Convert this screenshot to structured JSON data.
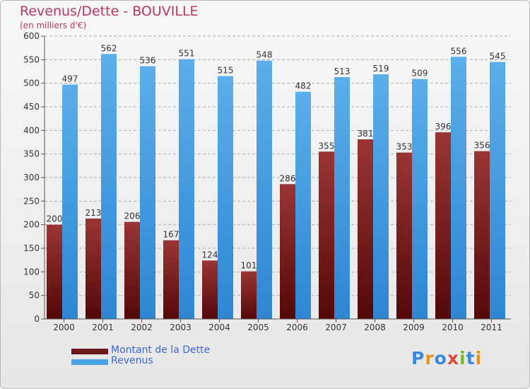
{
  "title": "Revenus/Dette - BOUVILLE",
  "subtitle": "(en milliers d'€)",
  "colors": {
    "title": "#b5395e",
    "dette": "#7d2a2a",
    "revenus": "#4aa3e6",
    "legend_text": "#3d67d8"
  },
  "legend": {
    "dette_label": "Montant de la Dette",
    "revenus_label": "Revenus"
  },
  "logo_text": "Proxiti",
  "chart_data": {
    "type": "bar",
    "title": "Revenus/Dette - BOUVILLE",
    "subtitle": "(en milliers d'€)",
    "categories": [
      "2000",
      "2001",
      "2002",
      "2003",
      "2004",
      "2005",
      "2006",
      "2007",
      "2008",
      "2009",
      "2010",
      "2011"
    ],
    "series": [
      {
        "name": "Montant de la Dette",
        "color": "#7d2a2a",
        "values": [
          200,
          213,
          206,
          167,
          124,
          101,
          286,
          355,
          381,
          353,
          396,
          356
        ]
      },
      {
        "name": "Revenus",
        "color": "#4aa3e6",
        "values": [
          497,
          562,
          536,
          551,
          515,
          548,
          482,
          513,
          519,
          509,
          556,
          545
        ]
      }
    ],
    "ylim": [
      0,
      600
    ],
    "yticks": [
      0,
      50,
      100,
      150,
      200,
      250,
      300,
      350,
      400,
      450,
      500,
      550,
      600
    ],
    "grid": true,
    "legend_position": "bottom-left"
  }
}
